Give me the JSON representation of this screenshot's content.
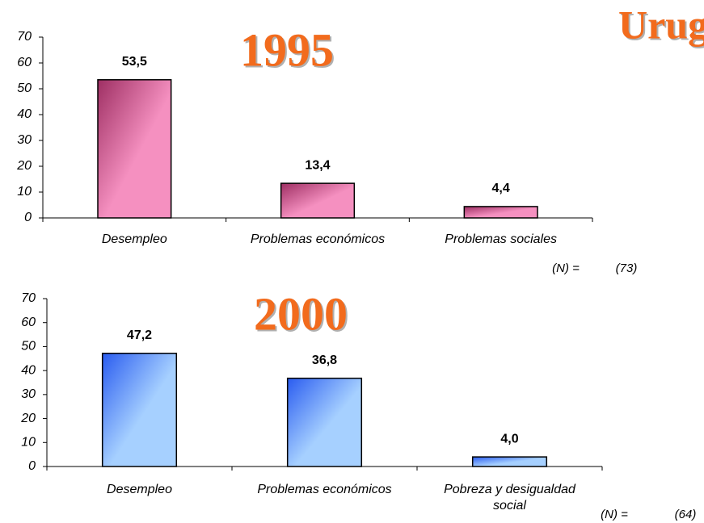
{
  "heading": "Urug",
  "chart_data": [
    {
      "type": "bar",
      "title": "1995",
      "categories": [
        "Desempleo",
        "Problemas económicos",
        "Problemas sociales"
      ],
      "values": [
        53.5,
        13.4,
        4.4
      ],
      "value_labels": [
        "53,5",
        "13,4",
        "4,4"
      ],
      "color": "#f590c0",
      "color_dark": "#9e2f63",
      "ylim": [
        0,
        70
      ],
      "yticks": [
        0,
        10,
        20,
        30,
        40,
        50,
        60,
        70
      ],
      "grid": false,
      "n_label": "(N) =",
      "n_value": "(73)"
    },
    {
      "type": "bar",
      "title": "2000",
      "categories": [
        "Desempleo",
        "Problemas económicos",
        "Pobreza y desigualdad social"
      ],
      "values": [
        47.2,
        36.8,
        4.0
      ],
      "value_labels": [
        "47,2",
        "36,8",
        "4,0"
      ],
      "color": "#a6d0ff",
      "color_dark": "#2a5cf0",
      "ylim": [
        0,
        70
      ],
      "yticks": [
        0,
        10,
        20,
        30,
        40,
        50,
        60,
        70
      ],
      "grid": false,
      "n_label": "(N) =",
      "n_value": "(64)"
    }
  ]
}
